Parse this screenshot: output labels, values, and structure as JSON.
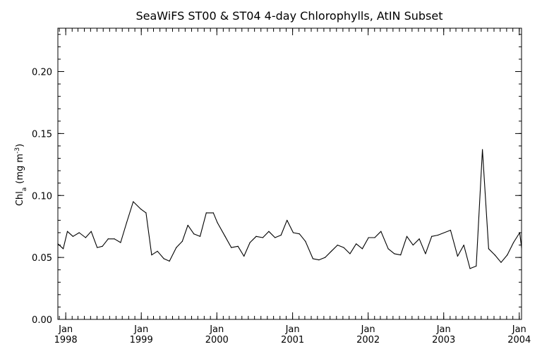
{
  "chart_data": {
    "type": "line",
    "title": "SeaWiFS ST00 & ST04 4-day Chlorophylls, AtIN Subset",
    "ylabel": {
      "base": "Chl",
      "subscript": "a",
      "units_prefix": "(mg m",
      "superscript": "-3",
      "units_suffix": ")"
    },
    "xlabel": "",
    "ylim": [
      0.0,
      0.235
    ],
    "xlim": [
      "1997-11-24",
      "2004-01-12"
    ],
    "yticks": [
      0.0,
      0.05,
      0.1,
      0.15,
      0.2
    ],
    "ytick_labels": [
      "0.00",
      "0.05",
      "0.10",
      "0.15",
      "0.20"
    ],
    "xticks": [
      {
        "date": "1998-01-01",
        "month": "Jan",
        "year": "1998"
      },
      {
        "date": "1999-01-01",
        "month": "Jan",
        "year": "1999"
      },
      {
        "date": "2000-01-01",
        "month": "Jan",
        "year": "2000"
      },
      {
        "date": "2001-01-01",
        "month": "Jan",
        "year": "2001"
      },
      {
        "date": "2002-01-01",
        "month": "Jan",
        "year": "2002"
      },
      {
        "date": "2003-01-01",
        "month": "Jan",
        "year": "2003"
      },
      {
        "date": "2004-01-01",
        "month": "Jan",
        "year": "2004"
      }
    ],
    "grid": false,
    "line_color": "#000000",
    "series": [
      {
        "x": [
          "1997-11-24",
          "1997-12-20",
          "1998-01-09",
          "1998-02-05",
          "1998-03-07",
          "1998-04-07",
          "1998-05-04",
          "1998-06-02",
          "1998-06-27",
          "1998-07-25",
          "1998-08-24",
          "1998-09-23",
          "1998-10-22",
          "1998-11-23",
          "1998-12-30",
          "1999-01-24",
          "1999-02-20",
          "1999-03-20",
          "1999-04-20",
          "1999-05-17",
          "1999-06-19",
          "1999-07-18",
          "1999-08-14",
          "1999-09-12",
          "1999-10-12",
          "1999-11-11",
          "1999-12-15",
          "2000-01-04",
          "2000-02-10",
          "2000-03-11",
          "2000-04-12",
          "2000-05-11",
          "2000-06-09",
          "2000-07-09",
          "2000-08-10",
          "2000-09-08",
          "2000-10-08",
          "2000-11-06",
          "2000-12-05",
          "2001-01-04",
          "2001-02-03",
          "2001-03-04",
          "2001-04-09",
          "2001-05-08",
          "2001-06-07",
          "2001-07-07",
          "2001-08-06",
          "2001-09-05",
          "2001-10-05",
          "2001-11-04",
          "2001-12-04",
          "2002-01-03",
          "2002-02-02",
          "2002-03-04",
          "2002-04-08",
          "2002-05-08",
          "2002-06-07",
          "2002-07-07",
          "2002-08-06",
          "2002-09-05",
          "2002-10-05",
          "2002-11-04",
          "2002-12-04",
          "2003-02-03",
          "2003-03-09",
          "2003-04-08",
          "2003-05-08",
          "2003-06-07",
          "2003-07-07",
          "2003-08-06",
          "2003-09-05",
          "2003-10-05",
          "2003-11-04",
          "2003-12-04",
          "2004-01-03",
          "2004-01-12"
        ],
        "y": [
          0.061,
          0.057,
          0.071,
          0.067,
          0.07,
          0.066,
          0.071,
          0.058,
          0.059,
          0.065,
          0.065,
          0.062,
          0.078,
          0.095,
          0.089,
          0.086,
          0.052,
          0.055,
          0.049,
          0.047,
          0.058,
          0.063,
          0.076,
          0.069,
          0.067,
          0.086,
          0.086,
          0.078,
          0.067,
          0.058,
          0.059,
          0.051,
          0.062,
          0.067,
          0.066,
          0.071,
          0.066,
          0.068,
          0.08,
          0.07,
          0.069,
          0.063,
          0.049,
          0.048,
          0.05,
          0.055,
          0.06,
          0.058,
          0.053,
          0.061,
          0.057,
          0.066,
          0.066,
          0.071,
          0.057,
          0.053,
          0.052,
          0.067,
          0.06,
          0.065,
          0.053,
          0.067,
          0.068,
          0.072,
          0.051,
          0.06,
          0.041,
          0.043,
          0.137,
          0.057,
          0.052,
          0.046,
          0.052,
          0.062,
          0.07,
          0.058
        ]
      }
    ]
  }
}
